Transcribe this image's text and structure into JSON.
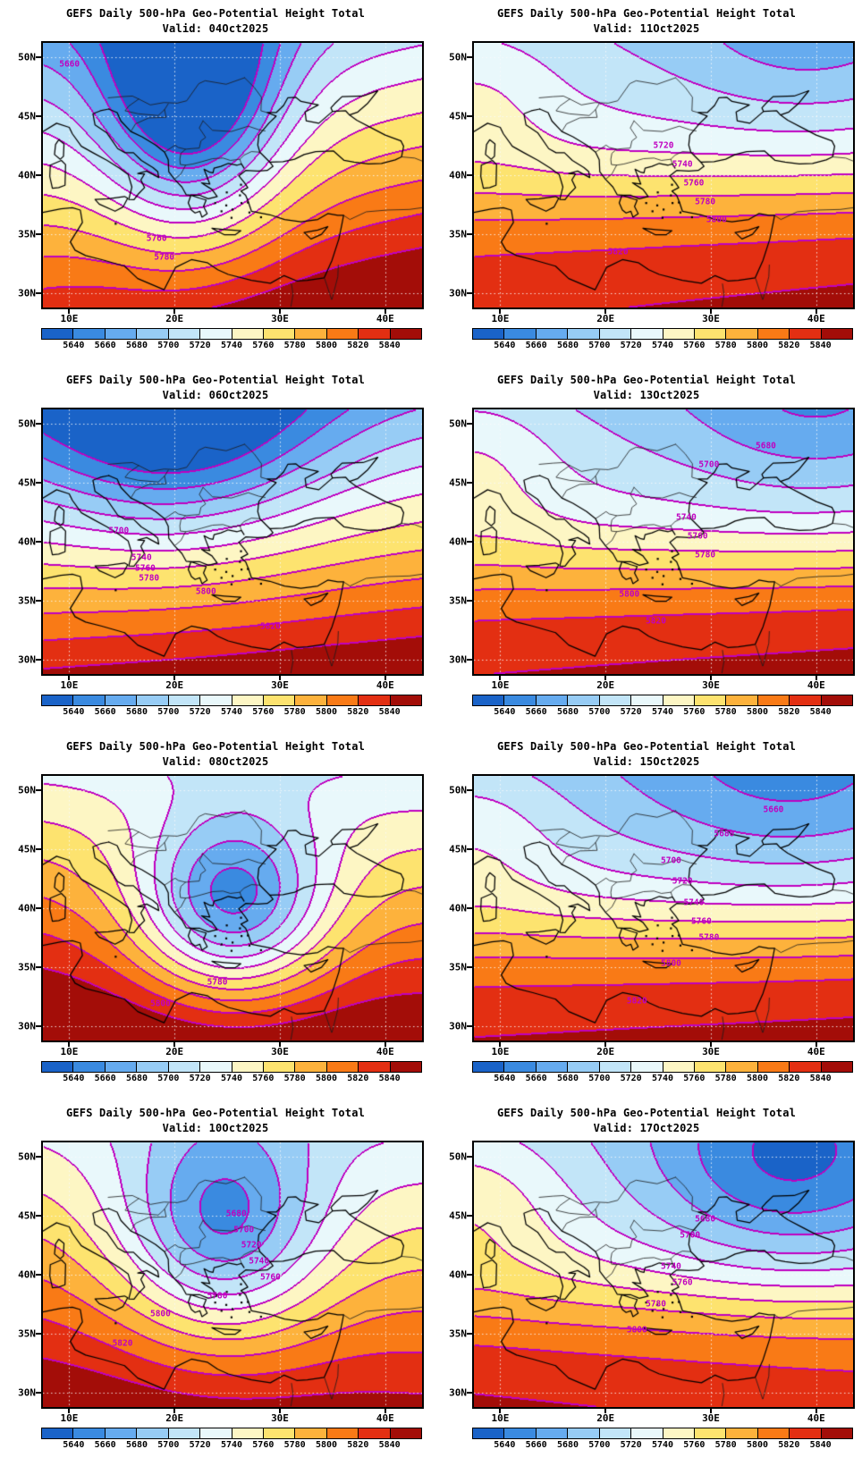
{
  "page": {
    "background": "#ffffff"
  },
  "chart_data": {
    "type": "heatmap",
    "subtype": "filled-contour weather maps (2 columns x 4 rows of GEFS daily 500-hPa geopotential height forecasts over the Mediterranean / Balkans / Turkey)",
    "grid_layout": {
      "rows": 4,
      "cols": 2
    },
    "region": {
      "lon_min": 7.5,
      "lon_max": 43.5,
      "lat_min": 28.8,
      "lat_max": 51.2
    },
    "axes": {
      "lat_vals": [
        50,
        45,
        40,
        35,
        30
      ],
      "lat_ticks": [
        "50N",
        "45N",
        "40N",
        "35N",
        "30N"
      ],
      "lon_vals": [
        10,
        20,
        30,
        40
      ],
      "lon_ticks": [
        "10E",
        "20E",
        "30E",
        "40E"
      ],
      "gridlines": "dotted, every 5 deg latitude and 10 deg longitude"
    },
    "contour_interval": 20,
    "contour_color": "#c000c0",
    "colorbar": {
      "tick_labels": [
        "5640",
        "5660",
        "5680",
        "5700",
        "5720",
        "5740",
        "5760",
        "5780",
        "5800",
        "5820",
        "5840"
      ],
      "colors": [
        "#1a63c8",
        "#3a8ae0",
        "#66abef",
        "#97ccf5",
        "#c2e5f8",
        "#e9f8fb",
        "#fdf6c4",
        "#fde36f",
        "#fdb23c",
        "#f97a16",
        "#e32f12",
        "#a30d08"
      ]
    },
    "panels": [
      {
        "title": "GEFS Daily 500-hPa Geo-Potential Height Total",
        "valid": "Valid: 04Oct2025",
        "field": {
          "base": 5775,
          "lat_grad": 7.0,
          "lon_grad": 1.2,
          "jet_amp": 0,
          "jet_lat": 38,
          "jet_width": 5,
          "centers": [
            {
              "lon": 21.5,
              "lat": 46.5,
              "amp": -140,
              "sx": 6,
              "sy": 8
            }
          ]
        },
        "contour_labels": [
          {
            "text": "5660",
            "x": 7,
            "y": 8
          },
          {
            "text": "5760",
            "x": 30,
            "y": 74
          },
          {
            "text": "5780",
            "x": 32,
            "y": 81
          }
        ]
      },
      {
        "title": "GEFS Daily 500-hPa Geo-Potential Height Total",
        "valid": "Valid: 11Oct2025",
        "field": {
          "base": 5774,
          "lat_grad": 2.5,
          "lon_grad": 0.3,
          "jet_amp": 40,
          "jet_lat": 38.5,
          "jet_width": 4.5,
          "centers": [
            {
              "lon": 40,
              "lat": 52,
              "amp": -42,
              "sx": 10,
              "sy": 6
            },
            {
              "lon": 7,
              "lat": 47,
              "amp": 30,
              "sx": 6,
              "sy": 5
            }
          ]
        },
        "contour_labels": [
          {
            "text": "5720",
            "x": 50,
            "y": 39
          },
          {
            "text": "5740",
            "x": 55,
            "y": 46
          },
          {
            "text": "5760",
            "x": 58,
            "y": 53
          },
          {
            "text": "5780",
            "x": 61,
            "y": 60
          },
          {
            "text": "5800",
            "x": 64,
            "y": 67
          },
          {
            "text": "5820",
            "x": 38,
            "y": 79
          }
        ]
      },
      {
        "title": "GEFS Daily 500-hPa Geo-Potential Height Total",
        "valid": "Valid: 06Oct2025",
        "field": {
          "base": 5765,
          "lat_grad": 8.0,
          "lon_grad": 0.6,
          "jet_amp": 0,
          "jet_lat": 38,
          "jet_width": 5,
          "centers": [
            {
              "lon": 20,
              "lat": 50,
              "amp": -90,
              "sx": 10,
              "sy": 7
            }
          ]
        },
        "contour_labels": [
          {
            "text": "5700",
            "x": 20,
            "y": 46
          },
          {
            "text": "5740",
            "x": 26,
            "y": 56
          },
          {
            "text": "5760",
            "x": 27,
            "y": 60
          },
          {
            "text": "5780",
            "x": 28,
            "y": 64
          },
          {
            "text": "5800",
            "x": 43,
            "y": 69
          },
          {
            "text": "5820",
            "x": 60,
            "y": 82
          }
        ]
      },
      {
        "title": "GEFS Daily 500-hPa Geo-Potential Height Total",
        "valid": "Valid: 13Oct2025",
        "field": {
          "base": 5772,
          "lat_grad": 2.8,
          "lon_grad": 0.25,
          "jet_amp": 42,
          "jet_lat": 38,
          "jet_width": 4.5,
          "centers": [
            {
              "lon": 40.5,
              "lat": 51.5,
              "amp": -45,
              "sx": 10,
              "sy": 6.5
            },
            {
              "lon": 7,
              "lat": 47,
              "amp": 35,
              "sx": 6,
              "sy": 5
            }
          ]
        },
        "contour_labels": [
          {
            "text": "5680",
            "x": 77,
            "y": 14
          },
          {
            "text": "5700",
            "x": 62,
            "y": 21
          },
          {
            "text": "5740",
            "x": 56,
            "y": 41
          },
          {
            "text": "5760",
            "x": 59,
            "y": 48
          },
          {
            "text": "5780",
            "x": 61,
            "y": 55
          },
          {
            "text": "5800",
            "x": 41,
            "y": 70
          },
          {
            "text": "5820",
            "x": 48,
            "y": 80
          }
        ]
      },
      {
        "title": "GEFS Daily 500-hPa Geo-Potential Height Total",
        "valid": "Valid: 08Oct2025",
        "field": {
          "base": 5802,
          "lat_grad": 6.5,
          "lon_grad": -0.4,
          "jet_amp": 0,
          "jet_lat": 38,
          "jet_width": 5,
          "centers": [
            {
              "lon": 25.5,
              "lat": 40,
              "amp": -145,
              "sx": 6.5,
              "sy": 5.5
            }
          ]
        },
        "contour_labels": [
          {
            "text": "5780",
            "x": 46,
            "y": 78
          },
          {
            "text": "5800",
            "x": 31,
            "y": 86
          }
        ]
      },
      {
        "title": "GEFS Daily 500-hPa Geo-Potential Height Total",
        "valid": "Valid: 15Oct2025",
        "field": {
          "base": 5770,
          "lat_grad": 2.8,
          "lon_grad": 0.2,
          "jet_amp": 45,
          "jet_lat": 38,
          "jet_width": 4.8,
          "centers": [
            {
              "lon": 38,
              "lat": 51,
              "amp": -45,
              "sx": 11,
              "sy": 6.5
            },
            {
              "lon": 7,
              "lat": 46.5,
              "amp": 30,
              "sx": 6,
              "sy": 5
            }
          ]
        },
        "contour_labels": [
          {
            "text": "5660",
            "x": 79,
            "y": 13
          },
          {
            "text": "5680",
            "x": 66,
            "y": 22
          },
          {
            "text": "5700",
            "x": 52,
            "y": 32
          },
          {
            "text": "5720",
            "x": 55,
            "y": 40
          },
          {
            "text": "5740",
            "x": 58,
            "y": 48
          },
          {
            "text": "5760",
            "x": 60,
            "y": 55
          },
          {
            "text": "5780",
            "x": 62,
            "y": 61
          },
          {
            "text": "5800",
            "x": 52,
            "y": 71
          },
          {
            "text": "5820",
            "x": 43,
            "y": 85
          }
        ]
      },
      {
        "title": "GEFS Daily 500-hPa Geo-Potential Height Total",
        "valid": "Valid: 10Oct2025",
        "field": {
          "base": 5794,
          "lat_grad": 5.5,
          "lon_grad": -0.5,
          "jet_amp": 0,
          "jet_lat": 38,
          "jet_width": 5,
          "centers": [
            {
              "lon": 24.5,
              "lat": 43.5,
              "amp": -115,
              "sx": 7,
              "sy": 6.5
            }
          ]
        },
        "contour_labels": [
          {
            "text": "5680",
            "x": 51,
            "y": 27
          },
          {
            "text": "5700",
            "x": 53,
            "y": 33
          },
          {
            "text": "5720",
            "x": 55,
            "y": 39
          },
          {
            "text": "5740",
            "x": 57,
            "y": 45
          },
          {
            "text": "5760",
            "x": 60,
            "y": 51
          },
          {
            "text": "5780",
            "x": 46,
            "y": 58
          },
          {
            "text": "5800",
            "x": 31,
            "y": 65
          },
          {
            "text": "5820",
            "x": 21,
            "y": 76
          }
        ]
      },
      {
        "title": "GEFS Daily 500-hPa Geo-Potential Height Total",
        "valid": "Valid: 17Oct2025",
        "field": {
          "base": 5772,
          "lat_grad": 2.5,
          "lon_grad": -0.3,
          "jet_amp": 40,
          "jet_lat": 37.5,
          "jet_width": 4.5,
          "centers": [
            {
              "lon": 37.5,
              "lat": 49,
              "amp": -70,
              "sx": 9.5,
              "sy": 6
            },
            {
              "lon": 7,
              "lat": 46,
              "amp": 32,
              "sx": 6,
              "sy": 5
            }
          ]
        },
        "contour_labels": [
          {
            "text": "5680",
            "x": 61,
            "y": 29
          },
          {
            "text": "5700",
            "x": 57,
            "y": 35
          },
          {
            "text": "5740",
            "x": 52,
            "y": 47
          },
          {
            "text": "5760",
            "x": 55,
            "y": 53
          },
          {
            "text": "5780",
            "x": 48,
            "y": 61
          },
          {
            "text": "5800",
            "x": 43,
            "y": 71
          }
        ]
      }
    ]
  }
}
